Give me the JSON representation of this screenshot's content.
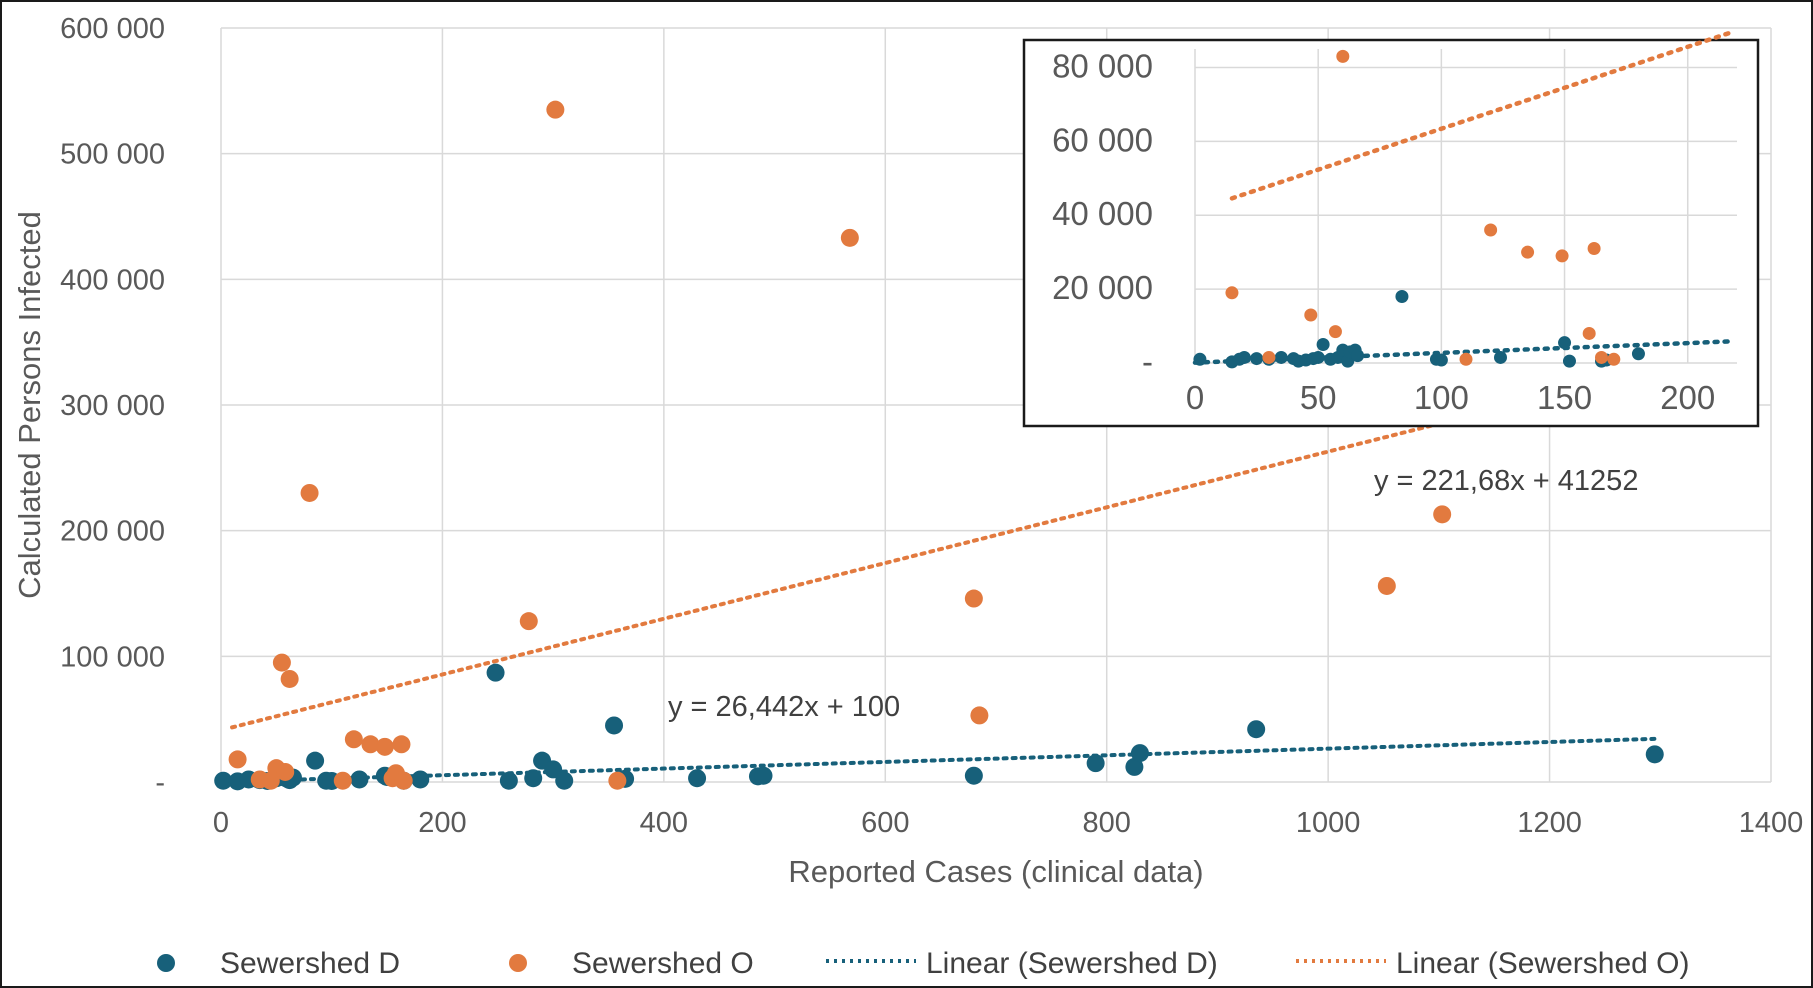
{
  "chart_data": [
    {
      "type": "scatter",
      "title": "",
      "xlabel": "Reported  Cases (clinical data)",
      "ylabel": "Calculated  Persons Infected",
      "xlim": [
        0,
        1400
      ],
      "ylim": [
        0,
        600000
      ],
      "x_ticks": [
        "0",
        "200",
        "400",
        "600",
        "800",
        "1000",
        "1200",
        "1400"
      ],
      "y_ticks": [
        "-",
        "100 000",
        "200 000",
        "300 000",
        "400 000",
        "500 000",
        "600 000"
      ],
      "grid": true,
      "legend_position": "bottom",
      "series": [
        {
          "name": "Sewershed D",
          "color": "#17607a",
          "points": [
            [
              2,
              1000
            ],
            [
              15,
              500
            ],
            [
              25,
              2000
            ],
            [
              35,
              1500
            ],
            [
              42,
              800
            ],
            [
              50,
              3000
            ],
            [
              55,
              4000
            ],
            [
              60,
              2500
            ],
            [
              62,
              1500
            ],
            [
              65,
              3500
            ],
            [
              85,
              17000
            ],
            [
              95,
              1000
            ],
            [
              100,
              800
            ],
            [
              125,
              2000
            ],
            [
              148,
              5000
            ],
            [
              150,
              4000
            ],
            [
              165,
              1000
            ],
            [
              180,
              2000
            ],
            [
              248,
              87000
            ],
            [
              260,
              1000
            ],
            [
              282,
              3000
            ],
            [
              290,
              17000
            ],
            [
              300,
              10000
            ],
            [
              310,
              1000
            ],
            [
              355,
              45000
            ],
            [
              365,
              2500
            ],
            [
              430,
              3000
            ],
            [
              485,
              4500
            ],
            [
              490,
              5000
            ],
            [
              680,
              5000
            ],
            [
              790,
              15000
            ],
            [
              825,
              12000
            ],
            [
              830,
              23000
            ],
            [
              935,
              42000
            ],
            [
              1295,
              22000
            ]
          ]
        },
        {
          "name": "Sewershed O",
          "color": "#e27a3f",
          "points": [
            [
              15,
              18000
            ],
            [
              35,
              2000
            ],
            [
              45,
              1000
            ],
            [
              50,
              11000
            ],
            [
              55,
              95000
            ],
            [
              58,
              8000
            ],
            [
              62,
              82000
            ],
            [
              80,
              230000
            ],
            [
              110,
              1000
            ],
            [
              120,
              34000
            ],
            [
              135,
              30000
            ],
            [
              148,
              28000
            ],
            [
              155,
              3000
            ],
            [
              158,
              7000
            ],
            [
              163,
              30000
            ],
            [
              165,
              1000
            ],
            [
              278,
              128000
            ],
            [
              302,
              535000
            ],
            [
              358,
              1000
            ],
            [
              568,
              433000
            ],
            [
              680,
              146000
            ],
            [
              685,
              53000
            ],
            [
              1053,
              156000
            ],
            [
              1103,
              213000
            ]
          ]
        }
      ],
      "trendlines": [
        {
          "name": "Linear (Sewershed D)",
          "slope": 26.442,
          "intercept": 100,
          "x_range": [
            0,
            1295
          ],
          "color": "#17607a",
          "equation": "y = 26,442x + 100"
        },
        {
          "name": "Linear (Sewershed O)",
          "slope": 221.68,
          "intercept": 41252,
          "x_range": [
            10,
            1295
          ],
          "color": "#e27a3f",
          "equation": "y = 221,68x + 41252"
        }
      ]
    },
    {
      "type": "scatter",
      "title": "",
      "xlim": [
        0,
        220
      ],
      "ylim": [
        0,
        85000
      ],
      "x_ticks": [
        "0",
        "50",
        "100",
        "150",
        "200"
      ],
      "y_ticks": [
        "-",
        "20 000",
        "40 000",
        "60 000",
        "80 000"
      ],
      "grid": true,
      "series": [
        {
          "name": "Sewershed D",
          "color": "#17607a",
          "points": [
            [
              2,
              1000
            ],
            [
              15,
              300
            ],
            [
              18,
              1000
            ],
            [
              20,
              1500
            ],
            [
              25,
              1200
            ],
            [
              30,
              1000
            ],
            [
              35,
              1500
            ],
            [
              40,
              1200
            ],
            [
              42,
              500
            ],
            [
              45,
              800
            ],
            [
              48,
              1200
            ],
            [
              50,
              1500
            ],
            [
              52,
              5000
            ],
            [
              55,
              1000
            ],
            [
              58,
              1500
            ],
            [
              60,
              3500
            ],
            [
              62,
              500
            ],
            [
              63,
              3000
            ],
            [
              65,
              3500
            ],
            [
              66,
              2000
            ],
            [
              84,
              18000
            ],
            [
              98,
              1000
            ],
            [
              100,
              800
            ],
            [
              124,
              1500
            ],
            [
              150,
              5500
            ],
            [
              152,
              500
            ],
            [
              165,
              500
            ],
            [
              167,
              800
            ],
            [
              180,
              2500
            ]
          ]
        },
        {
          "name": "Sewershed O",
          "color": "#e27a3f",
          "points": [
            [
              15,
              19000
            ],
            [
              30,
              1500
            ],
            [
              47,
              13000
            ],
            [
              57,
              8500
            ],
            [
              60,
              83000
            ],
            [
              110,
              1000
            ],
            [
              120,
              36000
            ],
            [
              135,
              30000
            ],
            [
              149,
              29000
            ],
            [
              160,
              8000
            ],
            [
              162,
              31000
            ],
            [
              165,
              1500
            ],
            [
              170,
              1000
            ]
          ]
        }
      ],
      "trendlines": [
        {
          "name": "Linear (Sewershed D)",
          "slope": 26.442,
          "intercept": 100,
          "x_range": [
            0,
            218
          ],
          "color": "#17607a"
        },
        {
          "name": "Linear (Sewershed O)",
          "slope": 221.68,
          "intercept": 41252,
          "x_range": [
            15,
            218
          ],
          "color": "#e27a3f"
        }
      ]
    }
  ],
  "legend": [
    {
      "label": "Sewershed D",
      "kind": "marker",
      "color": "#17607a"
    },
    {
      "label": "Sewershed O",
      "kind": "marker",
      "color": "#e27a3f"
    },
    {
      "label": "Linear (Sewershed D)",
      "kind": "line",
      "color": "#17607a"
    },
    {
      "label": "Linear (Sewershed O)",
      "kind": "line",
      "color": "#e27a3f"
    }
  ]
}
